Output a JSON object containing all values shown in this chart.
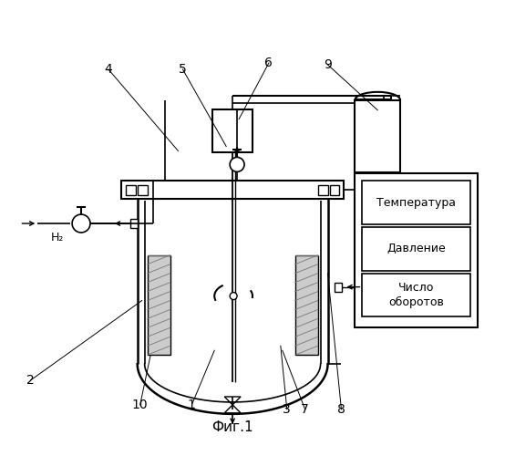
{
  "title": "Фиг.1",
  "boxes": {
    "temp": {
      "text": "Температура"
    },
    "press": {
      "text": "Давление"
    },
    "rpm": {
      "text": "Число\nоборотов"
    }
  },
  "h2_text": "H₂",
  "bg_color": "#ffffff"
}
